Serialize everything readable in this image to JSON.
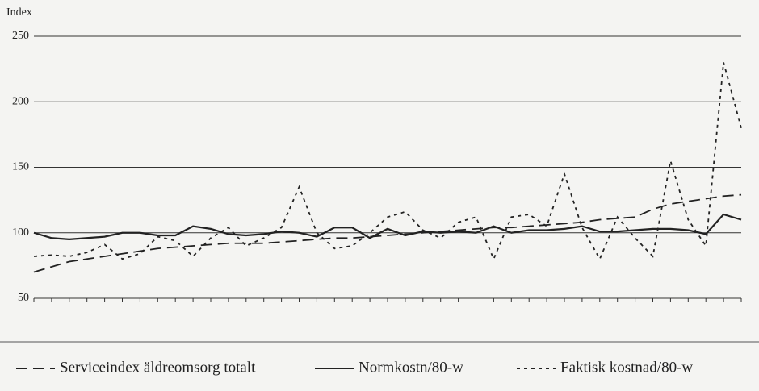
{
  "chart_data": {
    "type": "line",
    "y_axis_label": "Index",
    "categories": [
      null,
      null,
      null,
      null,
      null,
      null,
      null,
      null,
      null,
      null,
      null,
      null,
      null,
      null,
      null,
      null,
      null,
      null,
      null,
      null,
      null,
      null,
      null,
      null,
      null,
      null,
      null,
      null,
      null,
      null,
      null,
      null,
      null,
      null,
      null,
      null,
      null,
      null,
      null,
      null,
      null
    ],
    "ylim": [
      50,
      250
    ],
    "yticks": [
      50,
      100,
      150,
      200,
      250
    ],
    "grid": true,
    "legend": "bottom",
    "series": [
      {
        "name": "Serviceindex äldreomsorg totalt",
        "color": "#222222",
        "dash": "14 7",
        "values": [
          70,
          74,
          78,
          80,
          82,
          84,
          86,
          88,
          89,
          90,
          91,
          92,
          92,
          92,
          93,
          94,
          95,
          96,
          96,
          97,
          98,
          99,
          100,
          101,
          102,
          103,
          104,
          104,
          105,
          106,
          107,
          108,
          110,
          111,
          112,
          118,
          122,
          124,
          126,
          128,
          129
        ]
      },
      {
        "name": "Normkostn/80-w",
        "color": "#222222",
        "dash": "none",
        "values": [
          100,
          96,
          95,
          96,
          97,
          100,
          100,
          98,
          98,
          105,
          103,
          99,
          98,
          99,
          101,
          100,
          97,
          104,
          104,
          96,
          103,
          98,
          101,
          100,
          101,
          100,
          105,
          100,
          102,
          102,
          103,
          105,
          101,
          101,
          102,
          103,
          103,
          102,
          99,
          114,
          110
        ]
      },
      {
        "name": "Faktisk kostnad/80-w",
        "color": "#222222",
        "dash": "4 5",
        "values": [
          82,
          83,
          82,
          85,
          91,
          80,
          84,
          97,
          94,
          82,
          96,
          104,
          90,
          96,
          104,
          135,
          100,
          88,
          90,
          100,
          112,
          116,
          102,
          96,
          108,
          112,
          80,
          112,
          114,
          105,
          145,
          104,
          80,
          112,
          96,
          82,
          155,
          110,
          90,
          230,
          180
        ]
      }
    ]
  }
}
